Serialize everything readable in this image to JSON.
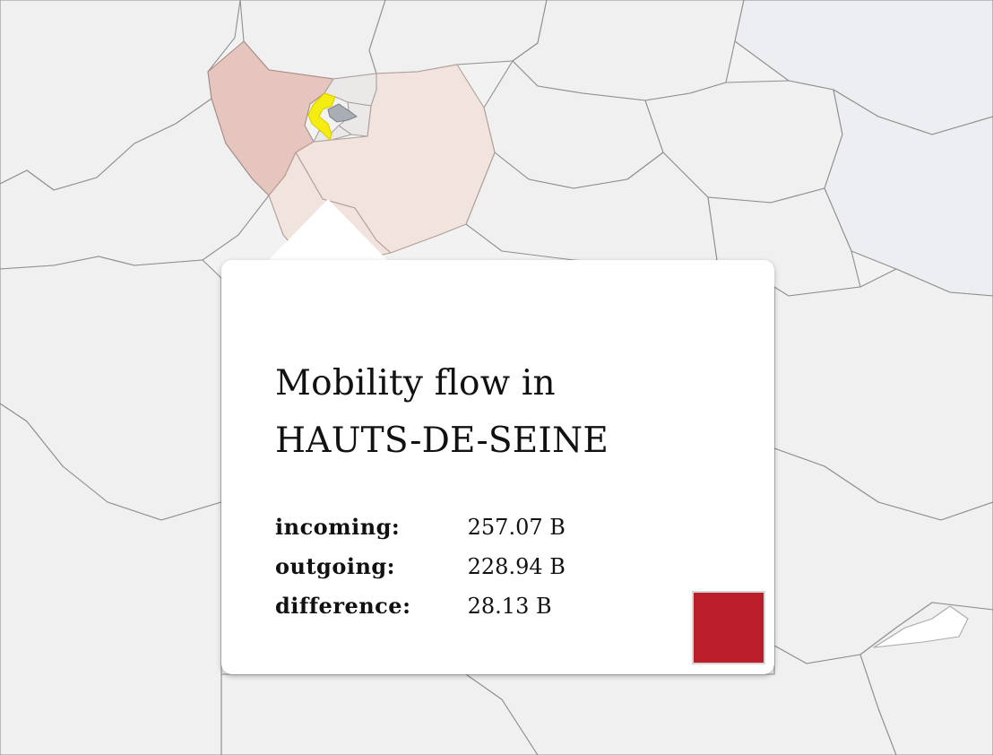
{
  "tooltip": {
    "title_line1": "Mobility flow in",
    "title_line2": "HAUTS-DE-SEINE",
    "rows": [
      {
        "label": "incoming:",
        "value": "257.07 B"
      },
      {
        "label": "outgoing:",
        "value": "228.94 B"
      },
      {
        "label": "difference:",
        "value": "28.13 B"
      }
    ],
    "swatch_color": "#bb1e2b"
  },
  "map": {
    "selected_department": "HAUTS-DE-SEINE",
    "selected_color": "#f5ec12",
    "region_colors": {
      "high_flow": "#e5c5bd",
      "medium_flow": "#f1e3de",
      "neutral": "#f0f0f0"
    }
  }
}
